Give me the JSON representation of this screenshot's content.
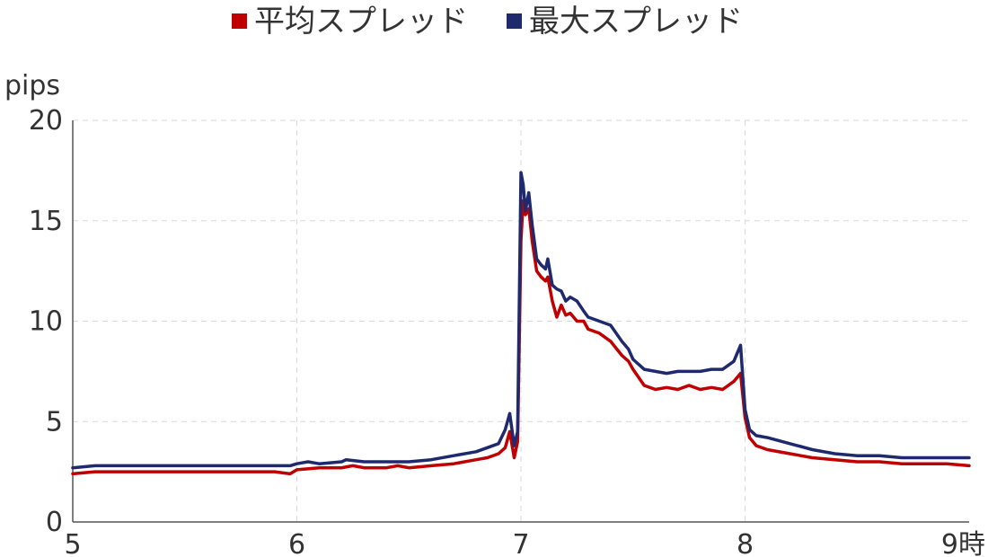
{
  "chart_data": {
    "type": "line",
    "ylabel": "pips",
    "xlabel": "",
    "x_ticks": [
      "5",
      "6",
      "7",
      "8",
      "9時"
    ],
    "y_ticks": [
      "0",
      "5",
      "10",
      "15",
      "20"
    ],
    "xlim": [
      5,
      9
    ],
    "ylim": [
      0,
      20
    ],
    "grid": true,
    "legend_position": "top-center",
    "series": [
      {
        "name": "平均スプレッド",
        "color": "#c00000",
        "points": [
          [
            5.0,
            2.4
          ],
          [
            5.1,
            2.5
          ],
          [
            5.2,
            2.5
          ],
          [
            5.3,
            2.5
          ],
          [
            5.4,
            2.5
          ],
          [
            5.5,
            2.5
          ],
          [
            5.6,
            2.5
          ],
          [
            5.7,
            2.5
          ],
          [
            5.8,
            2.5
          ],
          [
            5.9,
            2.5
          ],
          [
            5.97,
            2.4
          ],
          [
            6.0,
            2.6
          ],
          [
            6.1,
            2.7
          ],
          [
            6.2,
            2.7
          ],
          [
            6.25,
            2.8
          ],
          [
            6.3,
            2.7
          ],
          [
            6.4,
            2.7
          ],
          [
            6.45,
            2.8
          ],
          [
            6.5,
            2.7
          ],
          [
            6.6,
            2.8
          ],
          [
            6.7,
            2.9
          ],
          [
            6.8,
            3.1
          ],
          [
            6.85,
            3.2
          ],
          [
            6.9,
            3.4
          ],
          [
            6.93,
            3.7
          ],
          [
            6.95,
            4.5
          ],
          [
            6.97,
            3.2
          ],
          [
            6.985,
            4.0
          ],
          [
            7.0,
            14.0
          ],
          [
            7.01,
            16.0
          ],
          [
            7.02,
            15.3
          ],
          [
            7.035,
            15.6
          ],
          [
            7.05,
            14.0
          ],
          [
            7.07,
            12.5
          ],
          [
            7.09,
            12.2
          ],
          [
            7.11,
            12.0
          ],
          [
            7.12,
            12.2
          ],
          [
            7.14,
            11.0
          ],
          [
            7.16,
            10.2
          ],
          [
            7.18,
            10.8
          ],
          [
            7.2,
            10.3
          ],
          [
            7.22,
            10.4
          ],
          [
            7.25,
            10.0
          ],
          [
            7.28,
            10.0
          ],
          [
            7.3,
            9.6
          ],
          [
            7.35,
            9.4
          ],
          [
            7.4,
            9.0
          ],
          [
            7.45,
            8.3
          ],
          [
            7.48,
            8.0
          ],
          [
            7.5,
            7.6
          ],
          [
            7.55,
            6.8
          ],
          [
            7.6,
            6.6
          ],
          [
            7.65,
            6.7
          ],
          [
            7.7,
            6.6
          ],
          [
            7.75,
            6.8
          ],
          [
            7.8,
            6.6
          ],
          [
            7.85,
            6.7
          ],
          [
            7.9,
            6.6
          ],
          [
            7.95,
            7.0
          ],
          [
            7.98,
            7.4
          ],
          [
            8.0,
            5.2
          ],
          [
            8.02,
            4.2
          ],
          [
            8.05,
            3.8
          ],
          [
            8.1,
            3.6
          ],
          [
            8.2,
            3.4
          ],
          [
            8.3,
            3.2
          ],
          [
            8.4,
            3.1
          ],
          [
            8.5,
            3.0
          ],
          [
            8.6,
            3.0
          ],
          [
            8.7,
            2.9
          ],
          [
            8.8,
            2.9
          ],
          [
            8.9,
            2.9
          ],
          [
            9.0,
            2.8
          ]
        ]
      },
      {
        "name": "最大スプレッド",
        "color": "#1f2a6e",
        "points": [
          [
            5.0,
            2.7
          ],
          [
            5.1,
            2.8
          ],
          [
            5.2,
            2.8
          ],
          [
            5.3,
            2.8
          ],
          [
            5.4,
            2.8
          ],
          [
            5.5,
            2.8
          ],
          [
            5.6,
            2.8
          ],
          [
            5.7,
            2.8
          ],
          [
            5.8,
            2.8
          ],
          [
            5.9,
            2.8
          ],
          [
            5.97,
            2.8
          ],
          [
            6.0,
            2.9
          ],
          [
            6.05,
            3.0
          ],
          [
            6.1,
            2.9
          ],
          [
            6.2,
            3.0
          ],
          [
            6.22,
            3.1
          ],
          [
            6.3,
            3.0
          ],
          [
            6.4,
            3.0
          ],
          [
            6.5,
            3.0
          ],
          [
            6.6,
            3.1
          ],
          [
            6.7,
            3.3
          ],
          [
            6.8,
            3.5
          ],
          [
            6.85,
            3.7
          ],
          [
            6.9,
            3.9
          ],
          [
            6.93,
            4.6
          ],
          [
            6.95,
            5.4
          ],
          [
            6.97,
            3.8
          ],
          [
            6.985,
            4.5
          ],
          [
            7.0,
            17.4
          ],
          [
            7.01,
            16.8
          ],
          [
            7.02,
            15.5
          ],
          [
            7.035,
            16.4
          ],
          [
            7.05,
            14.8
          ],
          [
            7.07,
            13.1
          ],
          [
            7.09,
            12.8
          ],
          [
            7.11,
            12.6
          ],
          [
            7.12,
            13.1
          ],
          [
            7.14,
            11.8
          ],
          [
            7.16,
            11.6
          ],
          [
            7.18,
            11.5
          ],
          [
            7.2,
            11.0
          ],
          [
            7.22,
            11.2
          ],
          [
            7.25,
            11.0
          ],
          [
            7.28,
            10.5
          ],
          [
            7.3,
            10.2
          ],
          [
            7.35,
            10.0
          ],
          [
            7.4,
            9.8
          ],
          [
            7.45,
            9.0
          ],
          [
            7.48,
            8.6
          ],
          [
            7.5,
            8.1
          ],
          [
            7.55,
            7.6
          ],
          [
            7.6,
            7.5
          ],
          [
            7.65,
            7.4
          ],
          [
            7.7,
            7.5
          ],
          [
            7.75,
            7.5
          ],
          [
            7.8,
            7.5
          ],
          [
            7.85,
            7.6
          ],
          [
            7.9,
            7.6
          ],
          [
            7.95,
            8.0
          ],
          [
            7.98,
            8.8
          ],
          [
            8.0,
            5.6
          ],
          [
            8.02,
            4.6
          ],
          [
            8.05,
            4.3
          ],
          [
            8.1,
            4.2
          ],
          [
            8.2,
            3.9
          ],
          [
            8.3,
            3.6
          ],
          [
            8.4,
            3.4
          ],
          [
            8.5,
            3.3
          ],
          [
            8.6,
            3.3
          ],
          [
            8.7,
            3.2
          ],
          [
            8.8,
            3.2
          ],
          [
            8.9,
            3.2
          ],
          [
            9.0,
            3.2
          ]
        ]
      }
    ]
  }
}
